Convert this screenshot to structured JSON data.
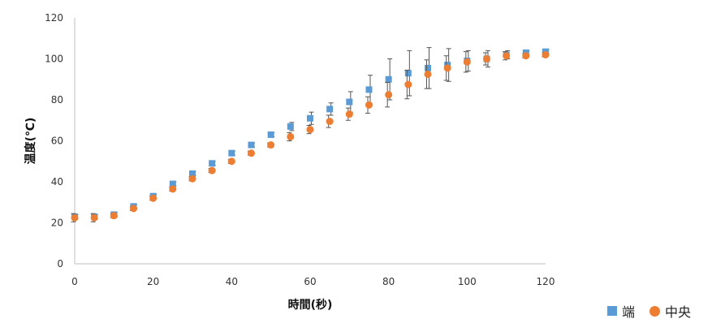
{
  "chart_data": {
    "type": "scatter",
    "title": "",
    "xlabel": "時間(秒)",
    "ylabel": "温度(℃)",
    "xlim": [
      0,
      120
    ],
    "ylim": [
      0,
      120
    ],
    "xticks": [
      "0",
      "20",
      "40",
      "60",
      "80",
      "100",
      "120"
    ],
    "yticks": [
      "0",
      "20",
      "40",
      "60",
      "80",
      "100",
      "120"
    ],
    "grid": false,
    "legend_position": "bottom-right",
    "x": [
      0,
      5,
      10,
      15,
      20,
      25,
      30,
      35,
      40,
      45,
      50,
      55,
      60,
      65,
      70,
      75,
      80,
      85,
      90,
      95,
      100,
      105,
      110,
      115,
      120
    ],
    "series": [
      {
        "name": "端",
        "color": "#5B9BD5",
        "marker": "square",
        "values": [
          23,
          23,
          24,
          28,
          33,
          39,
          44,
          49,
          54,
          58,
          63,
          67,
          71,
          75.5,
          79,
          85,
          90,
          93,
          95.5,
          97,
          99,
          100,
          102,
          103,
          103.5
        ],
        "errors": [
          1,
          1,
          1,
          1,
          1,
          1,
          1,
          1,
          1,
          1,
          1,
          2,
          3,
          3,
          5,
          7,
          10,
          11,
          10,
          8,
          5,
          4,
          2,
          1,
          1
        ]
      },
      {
        "name": "中央",
        "color": "#ED7D31",
        "marker": "circle",
        "values": [
          22.5,
          22.5,
          23.5,
          27,
          32,
          36.5,
          41.5,
          45.5,
          50,
          54,
          58,
          62,
          65.5,
          69.5,
          73,
          77.5,
          82.5,
          87.5,
          92.5,
          95.5,
          98.5,
          100,
          101.5,
          101.5,
          102
        ],
        "errors": [
          2,
          2,
          1,
          1,
          1,
          1,
          1,
          1,
          1,
          1,
          1,
          2,
          2,
          3,
          3,
          4,
          6,
          7,
          7,
          6,
          5,
          3,
          2,
          1,
          1
        ]
      }
    ]
  }
}
